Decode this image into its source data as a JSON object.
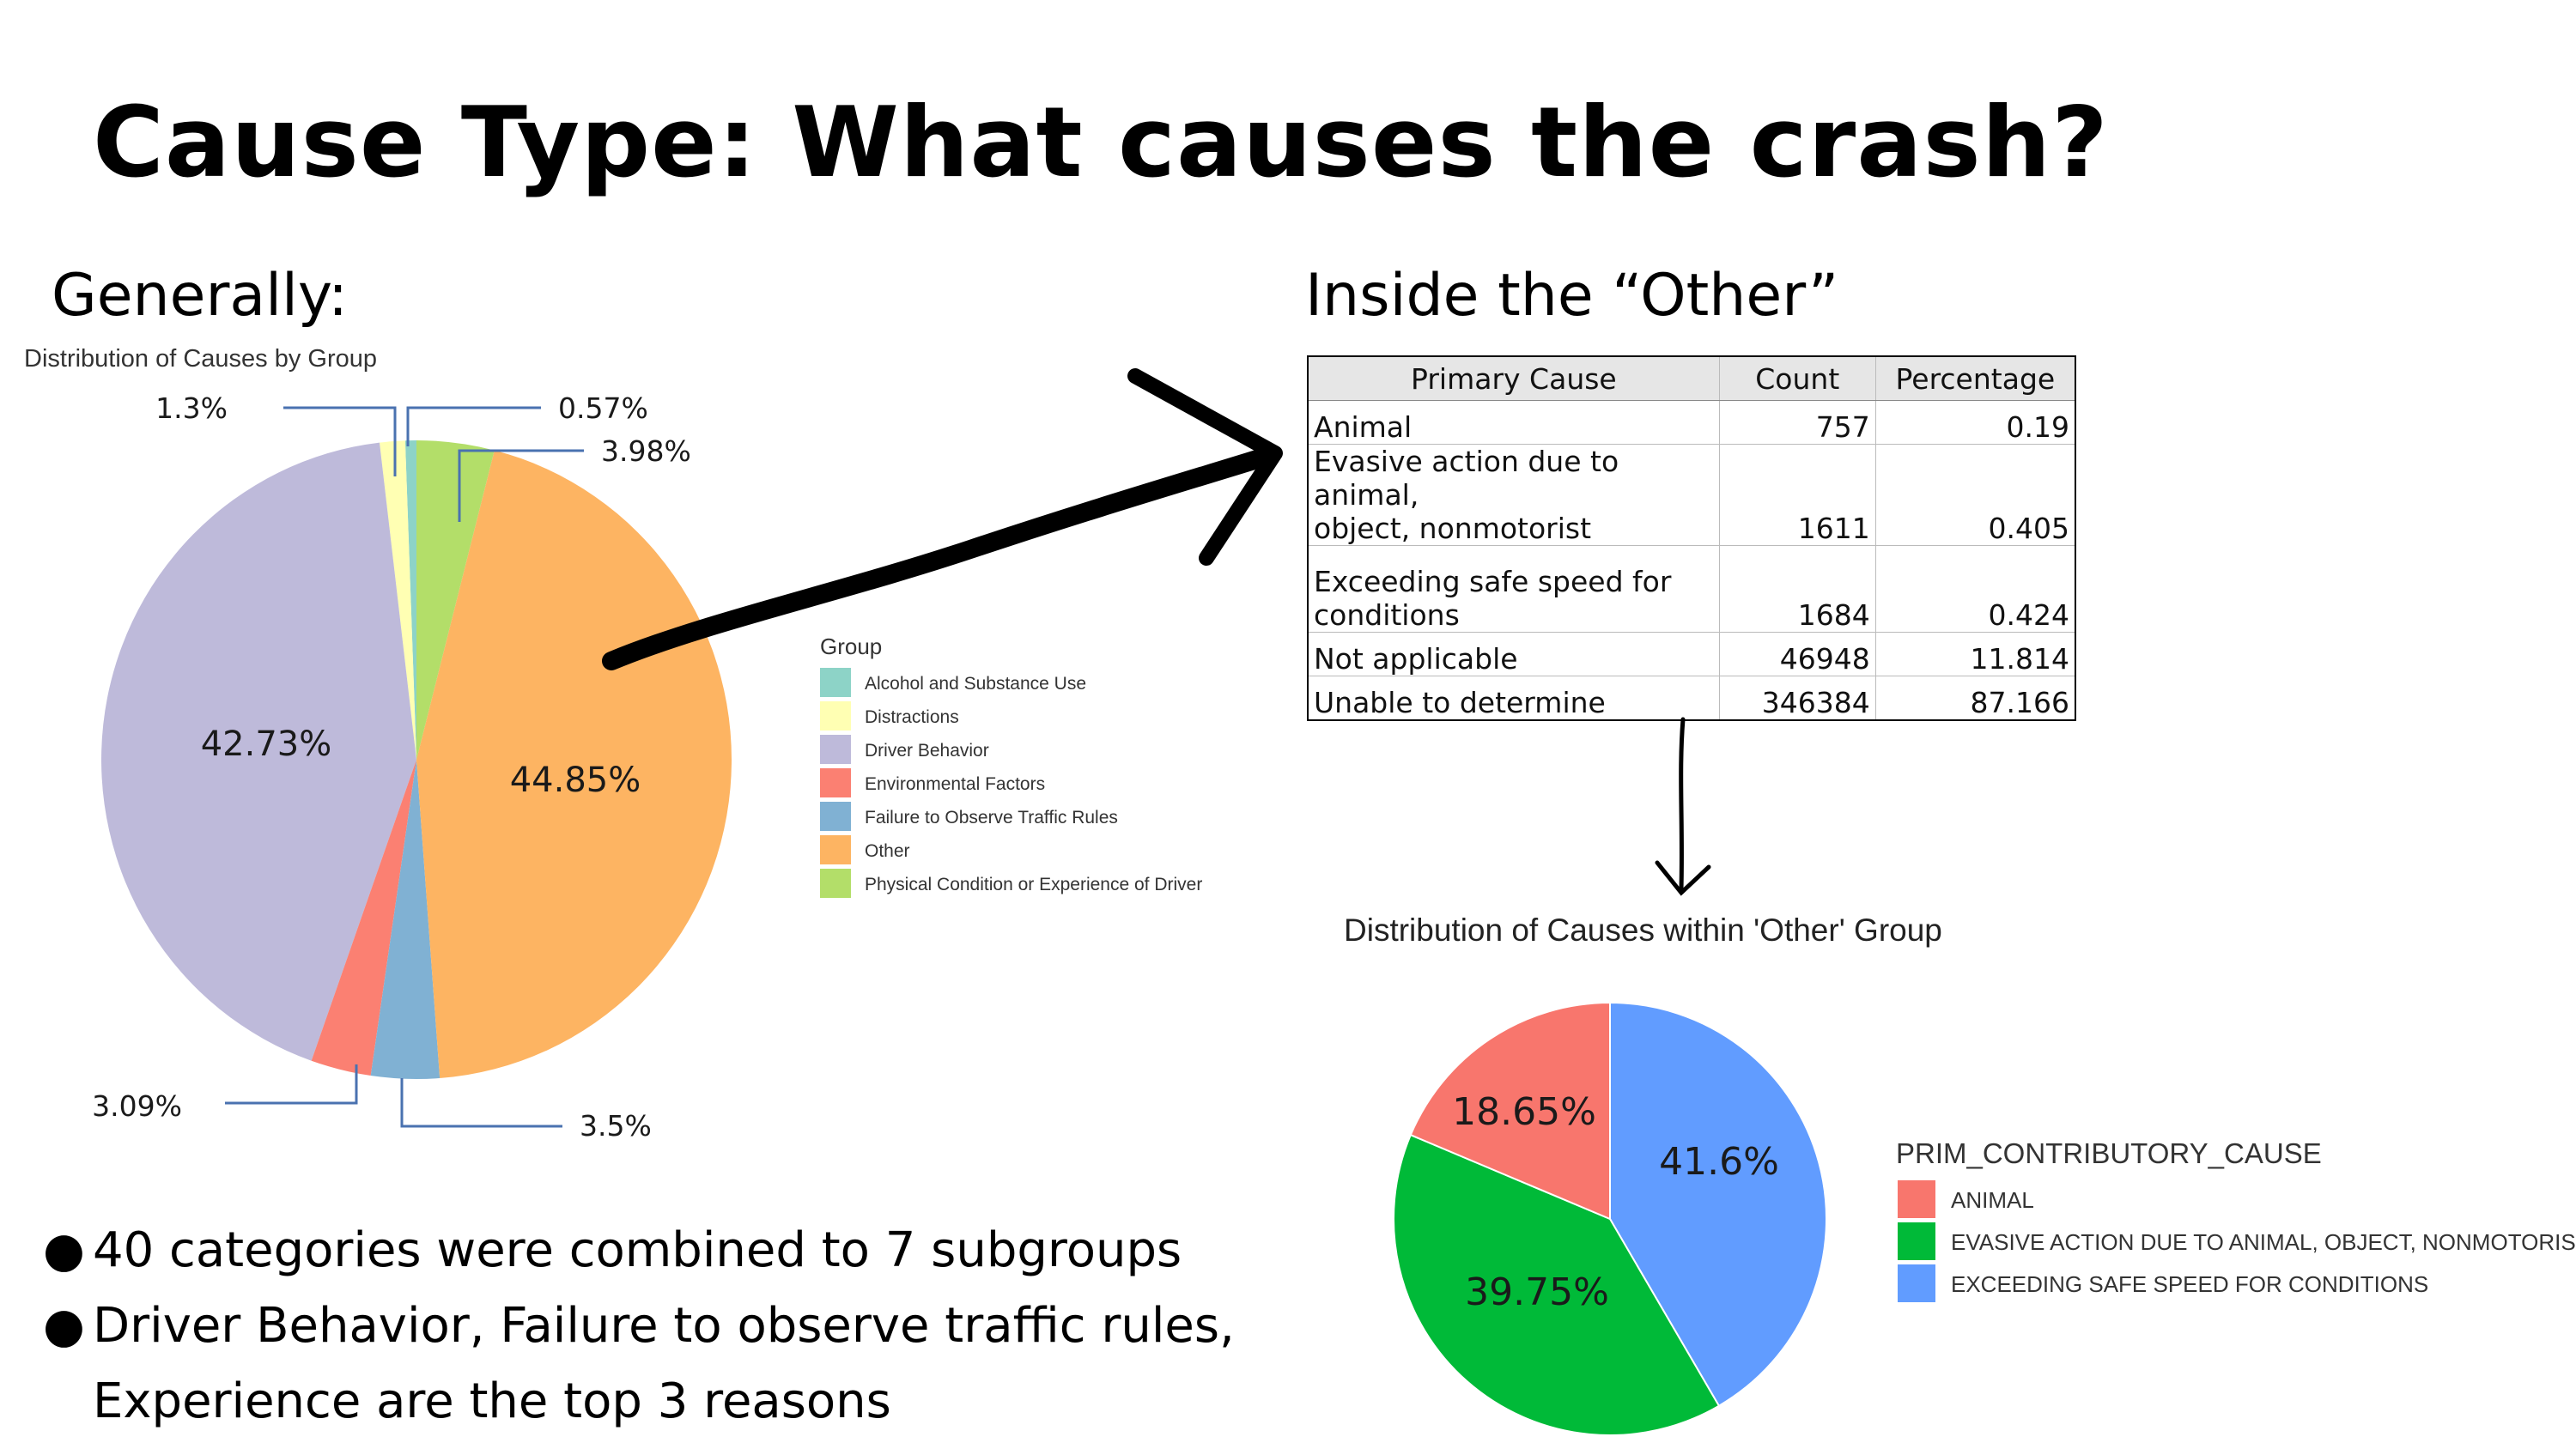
{
  "title": "Cause Type: What causes the crash?",
  "left_heading": "Generally:",
  "right_heading": "Inside the “Other”",
  "bullets": [
    "40 categories were combined to 7 subgroups",
    "Driver Behavior, Failure to observe traffic rules,",
    "Experience are the top 3 reasons"
  ],
  "table": {
    "headers": [
      "Primary Cause",
      "Count",
      "Percentage"
    ],
    "rows": [
      {
        "cause": "Animal",
        "cause_line2": "",
        "count": "757",
        "percentage": "0.19"
      },
      {
        "cause": "Evasive action due to animal,",
        "cause_line2": "object, nonmotorist",
        "count": "1611",
        "percentage": "0.405"
      },
      {
        "cause": "Exceeding safe speed for",
        "cause_line2": "conditions",
        "count": "1684",
        "percentage": "0.424"
      },
      {
        "cause": "Not applicable",
        "cause_line2": "",
        "count": "46948",
        "percentage": "11.814"
      },
      {
        "cause": "Unable to determine",
        "cause_line2": "",
        "count": "346384",
        "percentage": "87.166"
      }
    ]
  },
  "chart_data": [
    {
      "type": "pie",
      "title": "Distribution of Causes by Group",
      "legend_title": "Group",
      "legend_position": "right",
      "categories": [
        "Alcohol and Substance Use",
        "Distractions",
        "Driver Behavior",
        "Environmental Factors",
        "Failure to Observe Traffic Rules",
        "Other",
        "Physical Condition or Experience of Driver"
      ],
      "values": [
        0.57,
        1.3,
        42.73,
        3.09,
        3.5,
        44.85,
        3.98
      ],
      "labels": [
        "0.57%",
        "1.3%",
        "42.73%",
        "3.09%",
        "3.5%",
        "44.85%",
        "3.98%"
      ],
      "colors": [
        "#8dd3c7",
        "#ffffb3",
        "#bebada",
        "#fb8072",
        "#80b1d3",
        "#fdb462",
        "#b3de69"
      ]
    },
    {
      "type": "pie",
      "title": "Distribution of Causes within 'Other' Group",
      "legend_title": "PRIM_CONTRIBUTORY_CAUSE",
      "legend_position": "right",
      "categories": [
        "ANIMAL",
        "EVASIVE ACTION DUE TO ANIMAL, OBJECT, NONMOTORIST",
        "EXCEEDING SAFE SPEED FOR CONDITIONS"
      ],
      "values": [
        18.65,
        39.75,
        41.6
      ],
      "labels": [
        "18.65%",
        "39.75%",
        "41.6%"
      ],
      "colors": [
        "#f8766d",
        "#00ba38",
        "#619cff"
      ]
    }
  ]
}
